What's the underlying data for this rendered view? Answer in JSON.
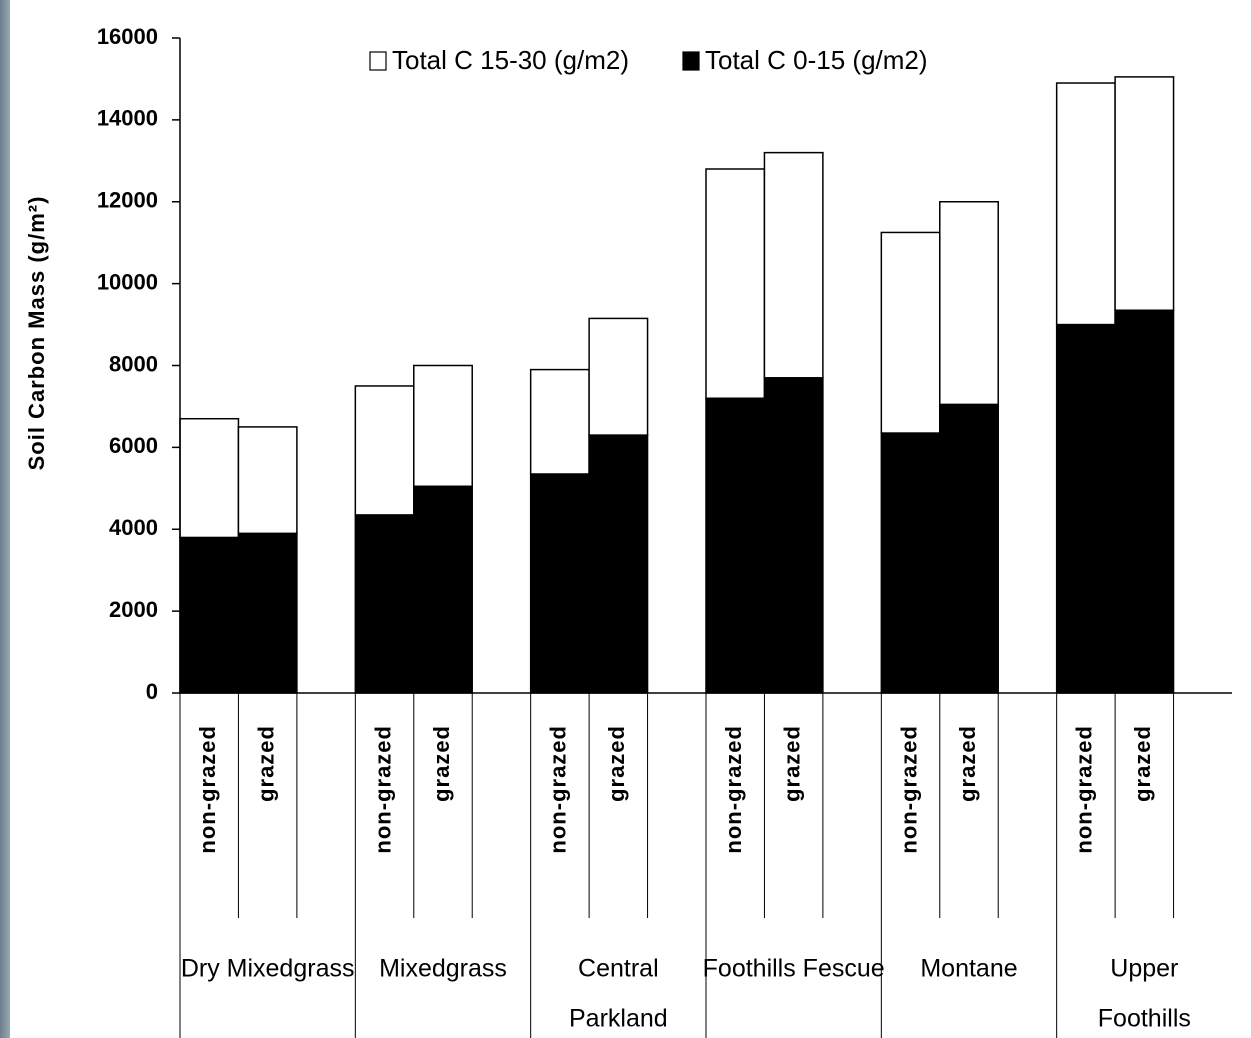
{
  "chart_data": {
    "type": "stacked_bar",
    "y_label": "Soil Carbon Mass (g/m²)",
    "categories": [
      "non-grazed",
      "grazed",
      "non-grazed",
      "grazed",
      "non-grazed",
      "grazed",
      "non-grazed",
      "grazed",
      "non-grazed",
      "grazed",
      "non-grazed",
      "grazed"
    ],
    "groups": [
      {
        "label": [
          "Dry Mixedgrass"
        ],
        "size": 2
      },
      {
        "label": [
          "Mixedgrass"
        ],
        "size": 2
      },
      {
        "label": [
          "Central",
          "Parkland"
        ],
        "size": 2
      },
      {
        "label": [
          "Foothills Fescue"
        ],
        "size": 2
      },
      {
        "label": [
          "Montane"
        ],
        "size": 2
      },
      {
        "label": [
          "Upper",
          "Foothills"
        ],
        "size": 2
      }
    ],
    "series": [
      {
        "name": "Total C 15-30 (g/m2)",
        "color": "#ffffff",
        "values": [
          2900,
          2600,
          3150,
          2950,
          2550,
          2850,
          5600,
          5500,
          4900,
          4950,
          5900,
          5700
        ]
      },
      {
        "name": "Total C 0-15 (g/m2)",
        "color": "#000000",
        "values": [
          3800,
          3900,
          4350,
          5050,
          5350,
          6300,
          7200,
          7700,
          6350,
          7050,
          9000,
          9350
        ]
      }
    ],
    "ylim": [
      0,
      16000
    ],
    "yticks": [
      0,
      2000,
      4000,
      6000,
      8000,
      10000,
      12000,
      14000,
      16000
    ],
    "grid": false,
    "legend": "top"
  }
}
